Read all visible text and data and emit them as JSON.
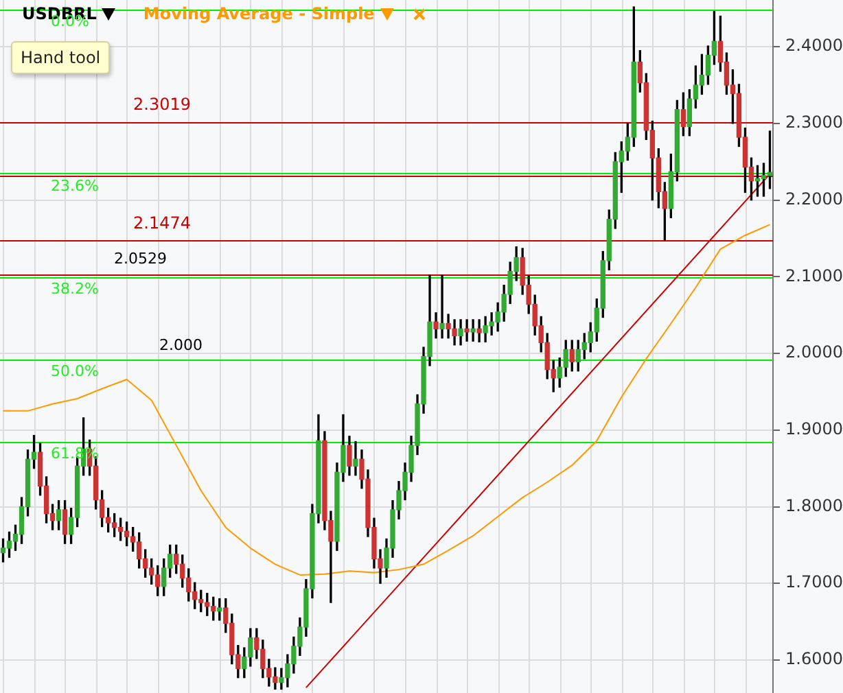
{
  "chart_data": {
    "type": "candlestick",
    "title": "USDBRL",
    "categories": [
      null,
      null,
      null,
      null,
      null,
      null,
      null,
      null,
      null,
      null,
      null,
      null,
      null,
      null,
      null,
      null,
      null,
      null,
      null,
      null,
      null,
      null,
      null,
      null,
      null,
      null,
      null,
      null,
      null,
      null,
      null,
      null,
      null,
      null,
      null,
      null,
      null,
      null,
      null,
      null,
      null,
      null,
      null,
      null,
      null,
      null,
      null,
      null,
      null,
      null,
      null,
      null,
      null,
      null,
      null,
      null,
      null,
      null,
      null,
      null,
      null,
      null,
      null,
      null,
      null,
      null,
      null,
      null,
      null,
      null,
      null,
      null,
      null,
      null,
      null,
      null,
      null,
      null,
      null,
      null,
      null,
      null,
      null,
      null,
      null,
      null,
      null,
      null,
      null,
      null,
      null,
      null,
      null,
      null,
      null,
      null,
      null,
      null,
      null,
      null,
      null,
      null,
      null,
      null,
      null,
      null,
      null,
      null,
      null,
      null,
      null,
      null,
      null,
      null,
      null,
      null,
      null,
      null,
      null,
      null,
      null,
      null,
      null,
      null,
      null
    ],
    "series": [
      {
        "ohlc": [
          [
            1.74,
            1.758,
            1.728,
            1.746
          ],
          [
            1.746,
            1.767,
            1.734,
            1.755
          ],
          [
            1.755,
            1.776,
            1.743,
            1.764
          ],
          [
            1.764,
            1.812,
            1.752,
            1.8
          ],
          [
            1.8,
            1.874,
            1.788,
            1.862
          ],
          [
            1.862,
            1.893,
            1.85,
            1.871
          ],
          [
            1.871,
            1.883,
            1.815,
            1.827
          ],
          [
            1.827,
            1.839,
            1.779,
            1.791
          ],
          [
            1.791,
            1.803,
            1.77,
            1.782
          ],
          [
            1.782,
            1.808,
            1.77,
            1.796
          ],
          [
            1.796,
            1.808,
            1.752,
            1.764
          ],
          [
            1.764,
            1.798,
            1.752,
            1.786
          ],
          [
            1.786,
            1.865,
            1.774,
            1.853
          ],
          [
            1.853,
            1.916,
            1.841,
            1.875
          ],
          [
            1.875,
            1.887,
            1.841,
            1.853
          ],
          [
            1.853,
            1.865,
            1.797,
            1.809
          ],
          [
            1.809,
            1.821,
            1.774,
            1.786
          ],
          [
            1.786,
            1.798,
            1.767,
            1.779
          ],
          [
            1.779,
            1.791,
            1.761,
            1.773
          ],
          [
            1.773,
            1.785,
            1.756,
            1.768
          ],
          [
            1.768,
            1.78,
            1.749,
            1.761
          ],
          [
            1.761,
            1.773,
            1.742,
            1.754
          ],
          [
            1.754,
            1.766,
            1.72,
            1.732
          ],
          [
            1.732,
            1.744,
            1.708,
            1.72
          ],
          [
            1.72,
            1.732,
            1.699,
            1.711
          ],
          [
            1.711,
            1.723,
            1.684,
            1.696
          ],
          [
            1.696,
            1.732,
            1.684,
            1.72
          ],
          [
            1.72,
            1.75,
            1.708,
            1.738
          ],
          [
            1.738,
            1.75,
            1.713,
            1.725
          ],
          [
            1.725,
            1.737,
            1.695,
            1.707
          ],
          [
            1.707,
            1.719,
            1.677,
            1.689
          ],
          [
            1.689,
            1.701,
            1.667,
            1.679
          ],
          [
            1.679,
            1.691,
            1.663,
            1.675
          ],
          [
            1.675,
            1.687,
            1.658,
            1.67
          ],
          [
            1.67,
            1.682,
            1.652,
            1.664
          ],
          [
            1.664,
            1.68,
            1.652,
            1.668
          ],
          [
            1.668,
            1.68,
            1.636,
            1.648
          ],
          [
            1.648,
            1.66,
            1.595,
            1.607
          ],
          [
            1.607,
            1.619,
            1.577,
            1.589
          ],
          [
            1.589,
            1.616,
            1.577,
            1.604
          ],
          [
            1.604,
            1.641,
            1.592,
            1.629
          ],
          [
            1.629,
            1.641,
            1.602,
            1.614
          ],
          [
            1.614,
            1.626,
            1.577,
            1.589
          ],
          [
            1.589,
            1.601,
            1.566,
            1.578
          ],
          [
            1.578,
            1.59,
            1.562,
            1.571
          ],
          [
            1.571,
            1.589,
            1.562,
            1.577
          ],
          [
            1.577,
            1.607,
            1.565,
            1.595
          ],
          [
            1.595,
            1.63,
            1.583,
            1.618
          ],
          [
            1.618,
            1.655,
            1.606,
            1.643
          ],
          [
            1.643,
            1.705,
            1.631,
            1.693
          ],
          [
            1.693,
            1.803,
            1.681,
            1.791
          ],
          [
            1.791,
            1.92,
            1.779,
            1.886
          ],
          [
            1.886,
            1.898,
            1.77,
            1.782
          ],
          [
            1.782,
            1.794,
            1.675,
            1.755
          ],
          [
            1.755,
            1.857,
            1.743,
            1.845
          ],
          [
            1.845,
            1.92,
            1.833,
            1.88
          ],
          [
            1.88,
            1.892,
            1.841,
            1.853
          ],
          [
            1.853,
            1.885,
            1.841,
            1.862
          ],
          [
            1.862,
            1.874,
            1.824,
            1.836
          ],
          [
            1.836,
            1.848,
            1.761,
            1.773
          ],
          [
            1.773,
            1.785,
            1.72,
            1.732
          ],
          [
            1.732,
            1.744,
            1.7,
            1.72
          ],
          [
            1.72,
            1.758,
            1.708,
            1.746
          ],
          [
            1.746,
            1.808,
            1.734,
            1.796
          ],
          [
            1.796,
            1.833,
            1.784,
            1.821
          ],
          [
            1.821,
            1.857,
            1.809,
            1.845
          ],
          [
            1.845,
            1.892,
            1.833,
            1.88
          ],
          [
            1.88,
            1.946,
            1.868,
            1.934
          ],
          [
            1.934,
            2.008,
            1.922,
            1.996
          ],
          [
            1.996,
            2.102,
            1.984,
            2.041
          ],
          [
            2.041,
            2.053,
            2.02,
            2.032
          ],
          [
            2.032,
            2.102,
            2.02,
            2.039
          ],
          [
            2.039,
            2.051,
            2.02,
            2.032
          ],
          [
            2.032,
            2.044,
            2.011,
            2.023
          ],
          [
            2.023,
            2.044,
            2.011,
            2.032
          ],
          [
            2.032,
            2.044,
            2.016,
            2.028
          ],
          [
            2.028,
            2.044,
            2.016,
            2.032
          ],
          [
            2.032,
            2.044,
            2.015,
            2.027
          ],
          [
            2.027,
            2.048,
            2.015,
            2.036
          ],
          [
            2.036,
            2.053,
            2.024,
            2.041
          ],
          [
            2.041,
            2.066,
            2.029,
            2.054
          ],
          [
            2.054,
            2.089,
            2.042,
            2.077
          ],
          [
            2.077,
            2.119,
            2.065,
            2.107
          ],
          [
            2.107,
            2.139,
            2.095,
            2.125
          ],
          [
            2.125,
            2.137,
            2.077,
            2.089
          ],
          [
            2.089,
            2.101,
            2.052,
            2.064
          ],
          [
            2.064,
            2.076,
            2.024,
            2.036
          ],
          [
            2.036,
            2.048,
            2.002,
            2.014
          ],
          [
            2.014,
            2.026,
            1.967,
            1.979
          ],
          [
            1.979,
            1.991,
            1.95,
            1.968
          ],
          [
            1.968,
            1.994,
            1.956,
            1.982
          ],
          [
            1.982,
            2.017,
            1.97,
            2.005
          ],
          [
            2.005,
            2.017,
            1.977,
            1.989
          ],
          [
            1.989,
            2.017,
            1.977,
            2.005
          ],
          [
            2.005,
            2.026,
            1.993,
            2.014
          ],
          [
            2.014,
            2.04,
            2.002,
            2.028
          ],
          [
            2.028,
            2.071,
            2.016,
            2.059
          ],
          [
            2.059,
            2.133,
            2.047,
            2.121
          ],
          [
            2.121,
            2.187,
            2.109,
            2.175
          ],
          [
            2.175,
            2.262,
            2.163,
            2.25
          ],
          [
            2.25,
            2.276,
            2.21,
            2.264
          ],
          [
            2.264,
            2.3,
            2.252,
            2.282
          ],
          [
            2.282,
            2.452,
            2.27,
            2.38
          ],
          [
            2.38,
            2.395,
            2.341,
            2.353
          ],
          [
            2.353,
            2.365,
            2.279,
            2.291
          ],
          [
            2.291,
            2.303,
            2.2,
            2.255
          ],
          [
            2.255,
            2.267,
            2.19,
            2.211
          ],
          [
            2.211,
            2.223,
            2.148,
            2.189
          ],
          [
            2.189,
            2.26,
            2.177,
            2.237
          ],
          [
            2.237,
            2.33,
            2.225,
            2.318
          ],
          [
            2.318,
            2.34,
            2.284,
            2.296
          ],
          [
            2.296,
            2.344,
            2.284,
            2.332
          ],
          [
            2.332,
            2.375,
            2.32,
            2.35
          ],
          [
            2.35,
            2.39,
            2.338,
            2.363
          ],
          [
            2.363,
            2.401,
            2.351,
            2.389
          ],
          [
            2.389,
            2.446,
            2.377,
            2.407
          ],
          [
            2.407,
            2.44,
            2.368,
            2.38
          ],
          [
            2.38,
            2.392,
            2.338,
            2.35
          ],
          [
            2.35,
            2.37,
            2.3,
            2.339
          ],
          [
            2.339,
            2.351,
            2.27,
            2.282
          ],
          [
            2.282,
            2.294,
            2.21,
            2.243
          ],
          [
            2.243,
            2.255,
            2.2,
            2.225
          ],
          [
            2.225,
            2.245,
            2.205,
            2.228
          ],
          [
            2.228,
            2.248,
            2.205,
            2.232
          ],
          [
            2.232,
            2.29,
            2.215,
            2.236
          ]
        ]
      },
      {
        "name": "Moving Average - Simple",
        "type": "line",
        "color": "#ff9900",
        "values": [
          1.925,
          null,
          null,
          null,
          1.925,
          null,
          null,
          null,
          1.934,
          null,
          null,
          null,
          1.941,
          null,
          null,
          null,
          1.954,
          null,
          null,
          null,
          1.966,
          null,
          null,
          null,
          1.939,
          null,
          null,
          null,
          1.88,
          null,
          null,
          null,
          1.821,
          null,
          null,
          null,
          1.773,
          null,
          null,
          null,
          1.746,
          null,
          null,
          null,
          1.725,
          null,
          null,
          null,
          1.711,
          null,
          null,
          null,
          1.712,
          null,
          null,
          null,
          1.716,
          null,
          null,
          null,
          1.714,
          null,
          null,
          null,
          1.718,
          null,
          null,
          null,
          1.725,
          null,
          null,
          null,
          1.743,
          null,
          null,
          null,
          1.762,
          null,
          null,
          null,
          1.787,
          null,
          null,
          null,
          1.812,
          null,
          null,
          null,
          1.832,
          null,
          null,
          null,
          1.854,
          null,
          null,
          null,
          1.886,
          null,
          null,
          null,
          1.943,
          null,
          null,
          null,
          1.993,
          null,
          null,
          null,
          2.039,
          null,
          null,
          null,
          2.086,
          null,
          null,
          null,
          2.136,
          null,
          null,
          null,
          2.154,
          null,
          null,
          null,
          2.168
        ]
      },
      {
        "type": "line",
        "color": "#cc0000",
        "values": [
          null,
          null,
          null,
          null,
          null,
          null,
          null,
          null,
          null,
          null,
          null,
          null,
          null,
          null,
          null,
          null,
          null,
          null,
          null,
          null,
          null,
          null,
          null,
          null,
          null,
          null,
          null,
          null,
          null,
          null,
          null,
          null,
          null,
          null,
          null,
          null,
          null,
          null,
          null,
          null,
          null,
          null,
          null,
          null,
          null,
          null,
          null,
          null,
          null,
          1.564,
          null,
          null,
          null,
          null,
          null,
          null,
          null,
          null,
          null,
          null,
          null,
          null,
          null,
          null,
          null,
          null,
          null,
          null,
          null,
          null,
          null,
          null,
          null,
          null,
          null,
          null,
          null,
          null,
          null,
          null,
          null,
          null,
          null,
          null,
          null,
          null,
          null,
          null,
          null,
          null,
          null,
          null,
          null,
          null,
          null,
          null,
          null,
          null,
          null,
          null,
          null,
          null,
          null,
          null,
          null,
          null,
          null,
          null,
          null,
          null,
          null,
          null,
          null,
          null,
          null,
          null,
          null,
          null,
          null,
          null,
          null,
          null,
          null,
          null,
          2.234
        ]
      }
    ],
    "ylim": [
      1.557,
      2.461
    ],
    "yticks": [
      {
        "value": 1.6,
        "label": "1.6000"
      },
      {
        "value": 1.7,
        "label": "1.7000"
      },
      {
        "value": 1.8,
        "label": "1.8000"
      },
      {
        "value": 1.9,
        "label": "1.9000"
      },
      {
        "value": 2.0,
        "label": "2.0000"
      },
      {
        "value": 2.1,
        "label": "2.1000"
      },
      {
        "value": 2.2,
        "label": "2.2000"
      },
      {
        "value": 2.3,
        "label": "2.3000"
      },
      {
        "value": 2.4,
        "label": "2.4000"
      }
    ],
    "tick_labels": "y",
    "grid": true,
    "legend": "top left",
    "ref_lines": [
      {
        "axis": "y",
        "value": 2.449,
        "color": "#00ee00"
      },
      {
        "axis": "y",
        "value": 2.3019,
        "label": "2.3019",
        "color": "#cc0000"
      },
      {
        "axis": "y",
        "value": 2.235,
        "color": "#00ee00"
      },
      {
        "axis": "y",
        "value": 2.232,
        "color": "#cc0000"
      },
      {
        "axis": "y",
        "value": 2.1474,
        "label": "2.1474",
        "color": "#cc0000"
      },
      {
        "axis": "y",
        "value": 2.103,
        "color": "#cc0000"
      },
      {
        "axis": "y",
        "value": 2.0995,
        "color": "#00ee00"
      },
      {
        "axis": "y",
        "value": 1.992,
        "color": "#00ee00"
      },
      {
        "axis": "y",
        "value": 1.884,
        "color": "#00ee00"
      }
    ],
    "annotations": [
      "Hand tool",
      "0.0%",
      "23.6%",
      "2.0529",
      "38.2%",
      "2.000",
      "50.0%",
      "61.8%"
    ]
  }
}
